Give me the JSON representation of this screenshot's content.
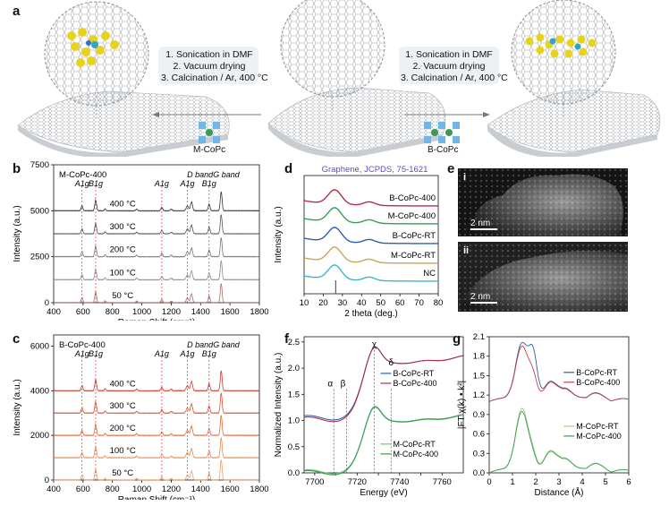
{
  "panel_letters": {
    "a": "a",
    "b": "b",
    "c": "c",
    "d": "d",
    "e": "e",
    "f": "f",
    "g": "g"
  },
  "panel_a": {
    "steps_left": [
      "1. Sonication in DMF",
      "2. Vacuum drying",
      "3. Calcination / Ar, 400 °C"
    ],
    "steps_right": [
      "1. Sonication in DMF",
      "2. Vacuum drying",
      "3. Calcination / Ar, 400 °C"
    ],
    "label_left": "M-CoPc",
    "label_right": "B-CoPc",
    "colors": {
      "graphene": "#9aa0a6",
      "node": "#d9dde2",
      "molecule": "#e8d21a",
      "cobalt": "#2aa7c9",
      "monomer": "#6fb7e8"
    }
  },
  "panel_b": {
    "title": "M-CoPc-400",
    "xlabel": "Raman Shift (cm⁻¹)",
    "ylabel": "Intensity (a.u.)",
    "xticks": [
      "400",
      "600",
      "800",
      "1000",
      "1200",
      "1400",
      "1600",
      "1800"
    ],
    "yticks": [
      "0",
      "2500",
      "5000",
      "7500"
    ],
    "temps": [
      "400 °C",
      "300 °C",
      "200 °C",
      "100 °C",
      "50 °C"
    ],
    "band_labels": [
      "A1g",
      "B1g",
      "A1g",
      "A1g",
      "D band",
      "B1g",
      "G band"
    ]
  },
  "panel_c": {
    "title": "B-CoPc-400",
    "xlabel": "Raman Shift (cm⁻¹)",
    "ylabel": "Intensity (a.u.)",
    "xticks": [
      "400",
      "600",
      "800",
      "1000",
      "1200",
      "1400",
      "1600",
      "1800"
    ],
    "yticks": [
      "0",
      "2000",
      "4000",
      "6000"
    ],
    "temps": [
      "400 °C",
      "300 °C",
      "200 °C",
      "100 °C",
      "50 °C"
    ],
    "band_labels": [
      "A1g",
      "B1g",
      "A1g",
      "A1g",
      "D band",
      "B1g",
      "G band"
    ]
  },
  "panel_d": {
    "title": "Graphene, JCPDS, 75-1621",
    "xlabel": "2 theta (deg.)",
    "ylabel": "Intensity (a.u.)",
    "xticks": [
      "10",
      "20",
      "30",
      "40",
      "50",
      "60",
      "70",
      "80"
    ],
    "series": [
      "B-CoPc-400",
      "M-CoPc-400",
      "B-CoPc-RT",
      "M-CoPc-RT",
      "NC"
    ],
    "colors": [
      "#b0304a",
      "#3a9b56",
      "#2f5fa7",
      "#c9a45a",
      "#3cb6c8"
    ]
  },
  "panel_e": {
    "sub": [
      "i",
      "ii"
    ],
    "scale": [
      "2 nm",
      "2 nm"
    ]
  },
  "panel_f": {
    "xlabel": "Energy (eV)",
    "ylabel": "Normalized Intensity (a.u.)",
    "xticks": [
      "7700",
      "7710",
      "7720",
      "7730",
      "7740",
      "7750",
      "7760"
    ],
    "yticks": [
      "0.0",
      "0.5",
      "1.0",
      "1.5",
      "2.0",
      "2.5"
    ],
    "peaks": [
      "α",
      "β",
      "χ",
      "δ"
    ],
    "legend_top": [
      "B-CoPc-RT",
      "B-CoPc-400"
    ],
    "legend_bottom": [
      "M-CoPc-RT",
      "M-CoPc-400"
    ]
  },
  "panel_g": {
    "xlabel": "Distance (Å)",
    "ylabel": "|FT χ(k) • k²|",
    "xticks": [
      "0",
      "1",
      "2",
      "3",
      "4",
      "5",
      "6"
    ],
    "yticks": [
      "0.0",
      "0.3",
      "0.6",
      "0.9",
      "1.2",
      "1.5",
      "1.8",
      "2.1"
    ],
    "legend_top": [
      "B-CoPc-RT",
      "B-CoPc-400"
    ],
    "legend_bottom": [
      "M-CoPc-RT",
      "M-CoPc-400"
    ]
  },
  "chart_data": [
    {
      "type": "line",
      "title": "M-CoPc-400",
      "xlabel": "Raman Shift (cm-1)",
      "ylabel": "Intensity (a.u.)",
      "xlim": [
        400,
        1800
      ],
      "ylim": [
        0,
        7500
      ],
      "series": [
        {
          "name": "400 °C",
          "offset": 5000
        },
        {
          "name": "300 °C",
          "offset": 3750
        },
        {
          "name": "200 °C",
          "offset": 2500
        },
        {
          "name": "100 °C",
          "offset": 1250
        },
        {
          "name": "50 °C",
          "offset": 0
        }
      ],
      "peaks": [
        593,
        686,
        750,
        1136,
        1310,
        1338,
        1458,
        1540
      ]
    },
    {
      "type": "line",
      "title": "B-CoPc-400",
      "xlabel": "Raman Shift (cm-1)",
      "ylabel": "Intensity (a.u.)",
      "xlim": [
        400,
        1800
      ],
      "ylim": [
        0,
        6500
      ],
      "series": [
        {
          "name": "400 °C",
          "offset": 4000
        },
        {
          "name": "300 °C",
          "offset": 3000
        },
        {
          "name": "200 °C",
          "offset": 2000
        },
        {
          "name": "100 °C",
          "offset": 1000
        },
        {
          "name": "50 °C",
          "offset": 0
        }
      ],
      "peaks": [
        593,
        686,
        750,
        1136,
        1310,
        1338,
        1458,
        1540
      ]
    },
    {
      "type": "line",
      "xlabel": "2 theta (deg.)",
      "ylabel": "Intensity (a.u.)",
      "xlim": [
        10,
        80
      ],
      "series": [
        {
          "name": "B-CoPc-400"
        },
        {
          "name": "M-CoPc-400"
        },
        {
          "name": "B-CoPc-RT"
        },
        {
          "name": "M-CoPc-RT"
        },
        {
          "name": "NC"
        }
      ],
      "reference_peak": 26.5
    },
    {
      "type": "line",
      "xlabel": "Energy (eV)",
      "ylabel": "Normalized Intensity (a.u.)",
      "xlim": [
        7695,
        7770
      ],
      "ylim": [
        0,
        2.6
      ],
      "series": [
        {
          "name": "B-CoPc-RT"
        },
        {
          "name": "B-CoPc-400"
        },
        {
          "name": "M-CoPc-RT"
        },
        {
          "name": "M-CoPc-400"
        }
      ],
      "features": [
        7709,
        7715,
        7728,
        7736
      ]
    },
    {
      "type": "line",
      "xlabel": "Distance (Å)",
      "ylabel": "|FT χ(k) • k²|",
      "xlim": [
        0,
        6
      ],
      "ylim": [
        0,
        2.1
      ],
      "series": [
        {
          "name": "B-CoPc-RT"
        },
        {
          "name": "B-CoPc-400"
        },
        {
          "name": "M-CoPc-RT"
        },
        {
          "name": "M-CoPc-400"
        }
      ],
      "main_peak": 1.4
    }
  ]
}
